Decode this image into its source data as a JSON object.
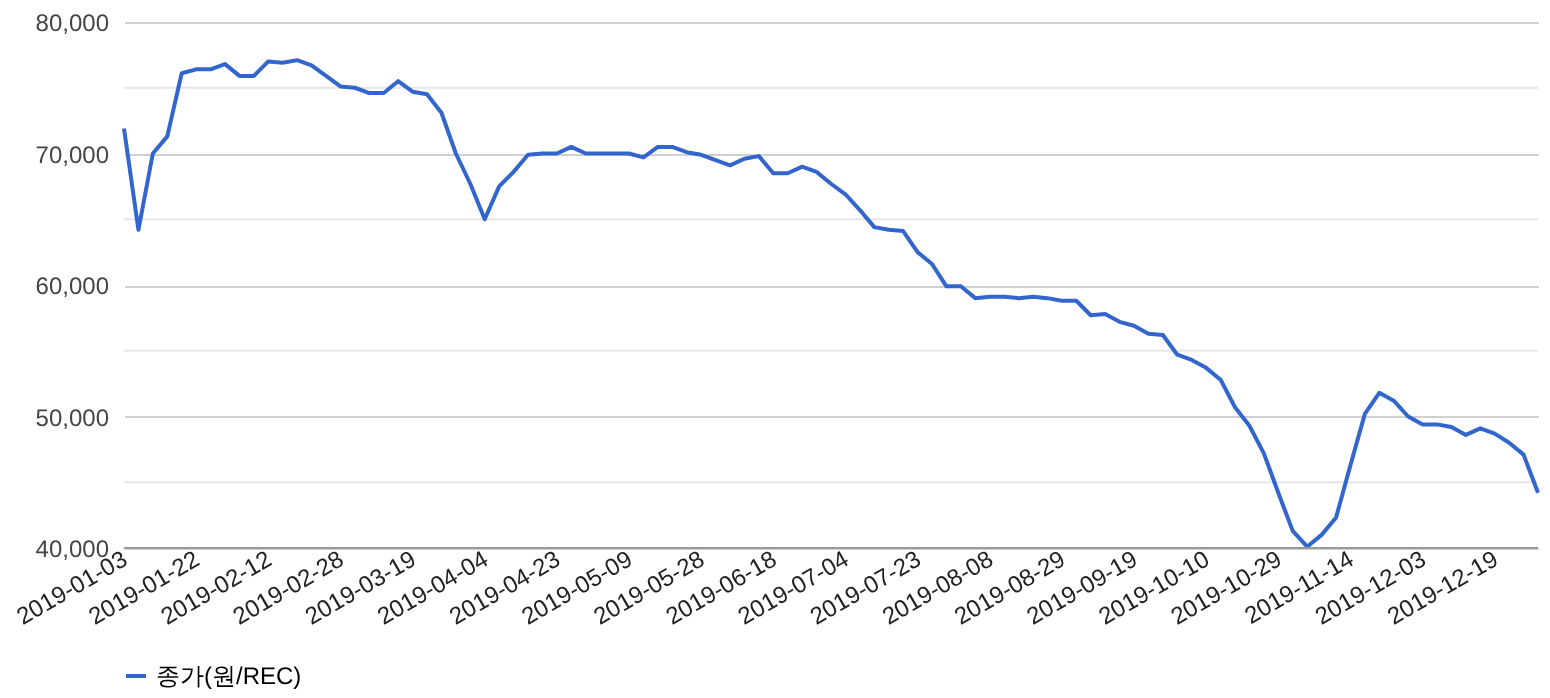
{
  "chart_data": {
    "type": "line",
    "legend": "bottom",
    "grid": "y",
    "marker": "none",
    "line_style": "solid",
    "categories": [
      "2019-01-03",
      null,
      null,
      null,
      null,
      "2019-01-22",
      null,
      null,
      null,
      null,
      "2019-02-12",
      null,
      null,
      null,
      null,
      "2019-02-28",
      null,
      null,
      null,
      null,
      "2019-03-19",
      null,
      null,
      null,
      null,
      "2019-04-04",
      null,
      null,
      null,
      null,
      "2019-04-23",
      null,
      null,
      null,
      null,
      "2019-05-09",
      null,
      null,
      null,
      null,
      "2019-05-28",
      null,
      null,
      null,
      null,
      "2019-06-18",
      null,
      null,
      null,
      null,
      "2019-07-04",
      null,
      null,
      null,
      null,
      "2019-07-23",
      null,
      null,
      null,
      null,
      "2019-08-08",
      null,
      null,
      null,
      null,
      "2019-08-29",
      null,
      null,
      null,
      null,
      "2019-09-19",
      null,
      null,
      null,
      null,
      "2019-10-10",
      null,
      null,
      null,
      null,
      "2019-10-29",
      null,
      null,
      null,
      null,
      "2019-11-14",
      null,
      null,
      null,
      null,
      "2019-12-03",
      null,
      null,
      null,
      null,
      "2019-12-19",
      null,
      null,
      null
    ],
    "ylim": [
      40000,
      80000
    ],
    "yticks": [
      {
        "value": 40000,
        "label": "40,000"
      },
      {
        "value": 45000,
        "label": null
      },
      {
        "value": 50000,
        "label": "50,000"
      },
      {
        "value": 55000,
        "label": null
      },
      {
        "value": 60000,
        "label": "60,000"
      },
      {
        "value": 65000,
        "label": null
      },
      {
        "value": 70000,
        "label": "70,000"
      },
      {
        "value": 75000,
        "label": null
      },
      {
        "value": 80000,
        "label": "80,000"
      }
    ],
    "series": [
      {
        "name": "종가(원/REC)",
        "color": "#3366cc",
        "values": [
          71900,
          64200,
          70000,
          71300,
          76100,
          76400,
          76400,
          76800,
          75900,
          75900,
          77000,
          76900,
          77100,
          76700,
          75900,
          75100,
          75000,
          74600,
          74600,
          75500,
          74700,
          74500,
          73100,
          70000,
          67700,
          65000,
          67500,
          68600,
          69900,
          70000,
          70000,
          70500,
          70000,
          70000,
          70000,
          70000,
          69700,
          70500,
          70500,
          70100,
          69900,
          69500,
          69100,
          69600,
          69800,
          68500,
          68500,
          69000,
          68600,
          67700,
          66900,
          65700,
          64400,
          64200,
          64100,
          62500,
          61600,
          59900,
          59900,
          59000,
          59100,
          59100,
          59000,
          59100,
          59000,
          58800,
          58800,
          57700,
          57800,
          57200,
          56900,
          56300,
          56200,
          54700,
          54300,
          53700,
          52800,
          50700,
          49300,
          47200,
          44200,
          41300,
          40100,
          41000,
          42300,
          46300,
          50200,
          51800,
          51200,
          50000,
          49400,
          49400,
          49200,
          48600,
          49100,
          48700,
          48000,
          47100,
          44200
        ]
      }
    ]
  }
}
